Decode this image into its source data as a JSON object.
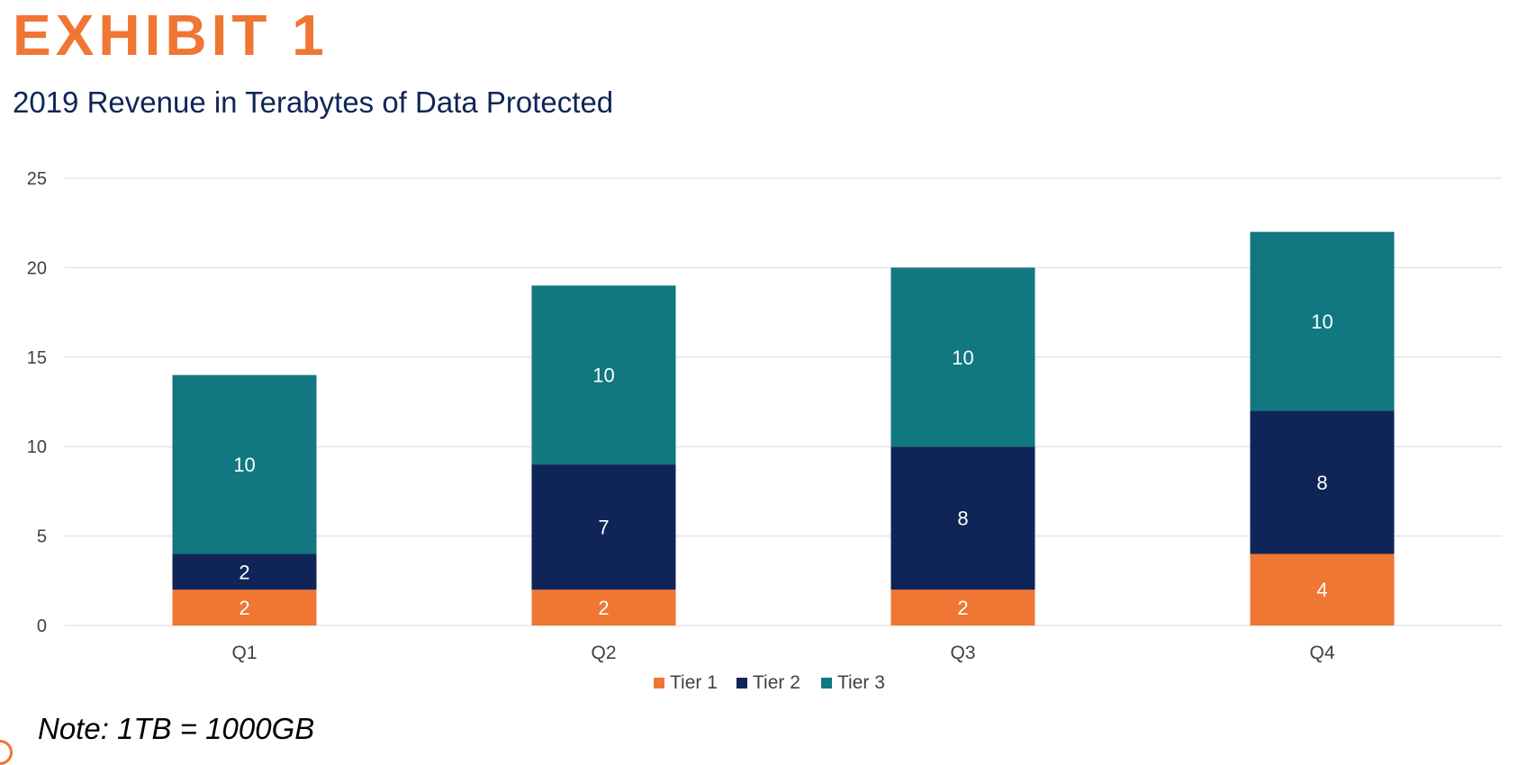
{
  "header": {
    "exhibit_label": "EXHIBIT 1",
    "subtitle": "2019 Revenue in Terabytes of Data Protected"
  },
  "note": "Note: 1TB = 1000GB",
  "chart_data": {
    "type": "bar",
    "stacked": true,
    "categories": [
      "Q1",
      "Q2",
      "Q3",
      "Q4"
    ],
    "series": [
      {
        "name": "Tier 1",
        "color": "#F07634",
        "values": [
          2,
          2,
          2,
          4
        ]
      },
      {
        "name": "Tier 2",
        "color": "#0F2557",
        "values": [
          2,
          7,
          8,
          8
        ]
      },
      {
        "name": "Tier 3",
        "color": "#117780",
        "values": [
          10,
          10,
          10,
          10
        ]
      }
    ],
    "title": "2019 Revenue in Terabytes of Data Protected",
    "xlabel": "",
    "ylabel": "",
    "ylim": [
      0,
      25
    ],
    "yticks": [
      0,
      5,
      10,
      15,
      20,
      25
    ],
    "grid": true,
    "legend_position": "bottom",
    "data_labels": true
  }
}
